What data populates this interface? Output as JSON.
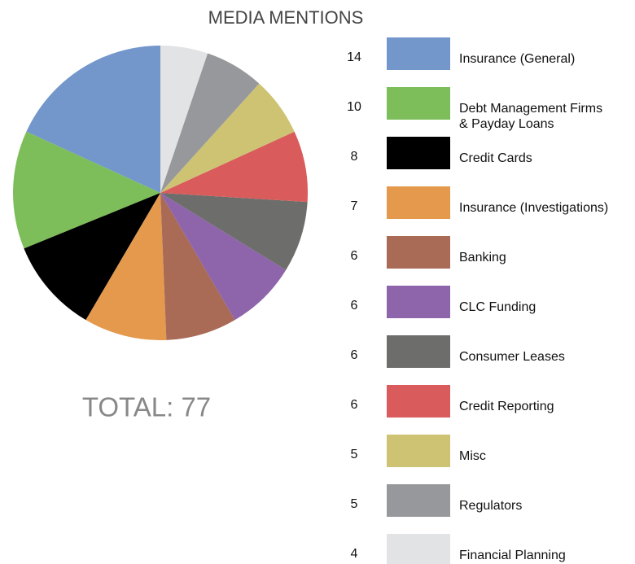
{
  "chart_data": {
    "type": "pie",
    "title": "MEDIA MENTIONS",
    "total_label": "TOTAL: 77",
    "categories": [
      "Insurance (General)",
      "Debt Management Firms\n& Payday Loans",
      "Credit Cards",
      "Insurance (Investigations)",
      "Banking",
      "CLC Funding",
      "Consumer Leases",
      "Credit Reporting",
      "Misc",
      "Regulators",
      "Financial Planning"
    ],
    "values": [
      14,
      10,
      8,
      7,
      6,
      6,
      6,
      6,
      5,
      5,
      4
    ],
    "colors": [
      "#7397cb",
      "#7dbe5a",
      "#000000",
      "#e5994d",
      "#a96a56",
      "#8e65aa",
      "#6d6e6b",
      "#d95b5b",
      "#cdc373",
      "#97989b",
      "#e2e3e5"
    ]
  }
}
